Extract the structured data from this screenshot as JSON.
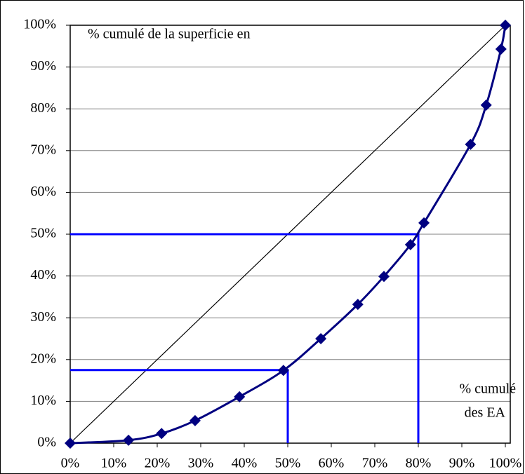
{
  "chart_data": {
    "type": "line",
    "y_label": "% cumulé de la superficie en",
    "x_label": [
      "% cumulé",
      "des EA"
    ],
    "series": [
      {
        "color": "#000080",
        "x": [
          0,
          13.4,
          21,
          28.7,
          38.9,
          49,
          57.6,
          66.1,
          72.1,
          78.2,
          81.3,
          92,
          95.6,
          99,
          100
        ],
        "values": [
          0,
          0.7,
          2.3,
          5.4,
          11.1,
          17.4,
          25,
          33.2,
          39.9,
          47.5,
          52.7,
          71.5,
          80.9,
          94.3,
          100
        ]
      }
    ],
    "guides": [
      {
        "x": 80,
        "y": 50
      },
      {
        "x": 50,
        "y": 17.5
      }
    ],
    "guide_color": "#0000ff",
    "xlim": [
      0,
      100
    ],
    "ylim": [
      0,
      100
    ],
    "xticks": [
      {
        "value": 0,
        "label": "0%"
      },
      {
        "value": 10,
        "label": "10%"
      },
      {
        "value": 20,
        "label": "20%"
      },
      {
        "value": 30,
        "label": "30%"
      },
      {
        "value": 40,
        "label": "40%"
      },
      {
        "value": 50,
        "label": "50%"
      },
      {
        "value": 60,
        "label": "60%"
      },
      {
        "value": 70,
        "label": "70%"
      },
      {
        "value": 80,
        "label": "80%"
      },
      {
        "value": 90,
        "label": "90%"
      },
      {
        "value": 100,
        "label": "100%"
      }
    ],
    "yticks": [
      {
        "value": 0,
        "label": "0%"
      },
      {
        "value": 10,
        "label": "10%"
      },
      {
        "value": 20,
        "label": "20%"
      },
      {
        "value": 30,
        "label": "30%"
      },
      {
        "value": 40,
        "label": "40%"
      },
      {
        "value": 50,
        "label": "50%"
      },
      {
        "value": 60,
        "label": "60%"
      },
      {
        "value": 70,
        "label": "70%"
      },
      {
        "value": 80,
        "label": "80%"
      },
      {
        "value": 90,
        "label": "90%"
      },
      {
        "value": 100,
        "label": "100%"
      }
    ],
    "grid": true,
    "diagonal": true
  }
}
